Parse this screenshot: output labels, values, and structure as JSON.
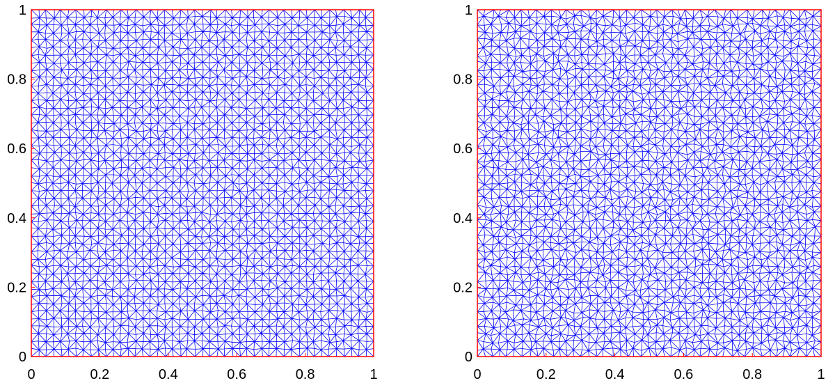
{
  "chart_data": [
    {
      "type": "mesh",
      "xlim": [
        0,
        1
      ],
      "ylim": [
        0,
        1
      ],
      "xticks": [
        0,
        0.2,
        0.4,
        0.6,
        0.8,
        1
      ],
      "yticks": [
        0,
        0.2,
        0.4,
        0.6,
        0.8,
        1
      ],
      "color": "#0000ff",
      "boundary_color": "#ff0000"
    },
    {
      "type": "mesh",
      "xlim": [
        0,
        1
      ],
      "ylim": [
        0,
        1
      ],
      "xticks": [
        0,
        0.2,
        0.4,
        0.6,
        0.8,
        1
      ],
      "yticks": [
        0,
        0.2,
        0.4,
        0.6,
        0.8,
        1
      ],
      "color": "#0000ff",
      "boundary_color": "#ff0000"
    }
  ]
}
